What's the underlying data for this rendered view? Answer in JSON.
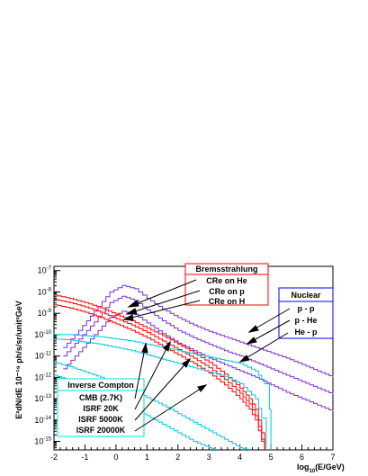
{
  "chart_data": {
    "type": "line",
    "title": "",
    "xlabel": "log10(E/GeV)",
    "xlabel_base": "log",
    "xlabel_sub": "10",
    "xlabel_rest": "(E/GeV)",
    "ylabel": "E²dN/dE 10⁻¹⁹ ph/s/sr/unit²GeV",
    "xlim": [
      -2,
      7
    ],
    "ylim_log10": [
      -15.4,
      -6.8
    ],
    "xticks": [
      "-2",
      "-1",
      "0",
      "1",
      "2",
      "3",
      "4",
      "5",
      "6",
      "7"
    ],
    "yticks": [
      {
        "mant": "10",
        "exp": "-7",
        "value": -7
      },
      {
        "mant": "10",
        "exp": "-8",
        "value": -8
      },
      {
        "mant": "10",
        "exp": "-9",
        "value": -9
      },
      {
        "mant": "10",
        "exp": "-10",
        "value": -10
      },
      {
        "mant": "10",
        "exp": "-11",
        "value": -11
      },
      {
        "mant": "10",
        "exp": "-12",
        "value": -12
      },
      {
        "mant": "10",
        "exp": "-13",
        "value": -13
      },
      {
        "mant": "10",
        "exp": "-14",
        "value": -14
      },
      {
        "mant": "10",
        "exp": "-15",
        "value": -15
      }
    ],
    "legends": [
      {
        "title": "Bremsstrahlung",
        "border": "#ff0000",
        "entries": [
          "CRe on He",
          "CRe on p",
          "CRe on H"
        ]
      },
      {
        "title": "Nuclear",
        "border": "#0000ff",
        "entries": [
          "p - p",
          "p - He",
          "He - p"
        ]
      },
      {
        "title": "Inverse Compton",
        "border": "#00e0e0",
        "entries": [
          "CMB (2.7K)",
          "ISRF 20K",
          "ISRF 5000K",
          "ISRF 20000K"
        ]
      }
    ],
    "series": [
      {
        "group": "Nuclear",
        "color": "#7b2fd6",
        "x": [
          -1.7,
          -1.2,
          -0.7,
          -0.2,
          0.2,
          0.6,
          1,
          1.5,
          2,
          2.5,
          3,
          3.5,
          4,
          4.5,
          5,
          5.5,
          6,
          6.5,
          7
        ],
        "log_y": [
          -10.6,
          -9.8,
          -8.9,
          -8.0,
          -7.7,
          -7.85,
          -8.3,
          -8.8,
          -9.2,
          -9.55,
          -9.85,
          -10.1,
          -10.35,
          -10.6,
          -10.85,
          -11.1,
          -11.4,
          -11.7,
          -12.0
        ]
      },
      {
        "group": "Nuclear",
        "color": "#7b2fd6",
        "x": [
          -1.7,
          -1.2,
          -0.7,
          -0.2,
          0.2,
          0.6,
          1,
          1.5,
          2,
          2.5,
          3,
          3.5,
          4,
          4.5,
          5,
          5.5,
          6,
          6.5,
          7
        ],
        "log_y": [
          -11.0,
          -10.2,
          -9.4,
          -8.5,
          -8.2,
          -8.4,
          -8.85,
          -9.35,
          -9.8,
          -10.15,
          -10.45,
          -10.75,
          -11.0,
          -11.3,
          -11.6,
          -11.9,
          -12.2,
          -12.5,
          -12.8
        ]
      },
      {
        "group": "Nuclear",
        "color": "#7b2fd6",
        "x": [
          -1.7,
          -1.2,
          -0.7,
          -0.2,
          0.2,
          0.6,
          1,
          1.5,
          2,
          2.5,
          3,
          3.5,
          4,
          4.5,
          5,
          5.5,
          6,
          6.5,
          7
        ],
        "log_y": [
          -11.6,
          -10.8,
          -10.0,
          -9.2,
          -8.9,
          -9.05,
          -9.45,
          -9.95,
          -10.4,
          -10.75,
          -11.1,
          -11.4,
          -11.7,
          -12.0,
          -12.35,
          -12.7,
          -13.0,
          -13.3,
          -13.6
        ]
      },
      {
        "group": "Bremsstrahlung",
        "color": "#ff0000",
        "x": [
          -2,
          -1.5,
          -1,
          -0.5,
          0,
          0.5,
          1,
          1.5,
          2,
          2.5,
          3,
          3.5,
          4,
          4.3,
          4.5,
          4.6,
          4.7,
          4.8
        ],
        "log_y": [
          -8.15,
          -8.3,
          -8.5,
          -8.75,
          -9.05,
          -9.35,
          -9.7,
          -10.05,
          -10.45,
          -10.85,
          -11.3,
          -11.85,
          -12.5,
          -13.0,
          -13.5,
          -14.0,
          -14.6,
          -15.4
        ]
      },
      {
        "group": "Bremsstrahlung",
        "color": "#ff0000",
        "x": [
          -2,
          -1.5,
          -1,
          -0.5,
          0,
          0.5,
          1,
          1.5,
          2,
          2.5,
          3,
          3.5,
          4,
          4.3,
          4.5,
          4.6,
          4.7,
          4.8
        ],
        "log_y": [
          -8.35,
          -8.5,
          -8.7,
          -8.95,
          -9.25,
          -9.55,
          -9.9,
          -10.3,
          -10.7,
          -11.1,
          -11.55,
          -12.1,
          -12.75,
          -13.25,
          -13.8,
          -14.3,
          -14.9,
          -15.4
        ]
      },
      {
        "group": "Bremsstrahlung",
        "color": "#ff0000",
        "x": [
          -2,
          -1.5,
          -1,
          -0.5,
          0,
          0.5,
          1,
          1.5,
          2,
          2.5,
          3,
          3.5,
          4,
          4.3,
          4.5,
          4.6,
          4.7,
          4.8
        ],
        "log_y": [
          -8.6,
          -8.75,
          -8.95,
          -9.2,
          -9.5,
          -9.8,
          -10.15,
          -10.55,
          -10.95,
          -11.35,
          -11.8,
          -12.35,
          -13.0,
          -13.5,
          -14.0,
          -14.5,
          -15.0,
          -15.4
        ]
      },
      {
        "group": "Inverse Compton",
        "color": "#00c8e0",
        "x": [
          -2,
          -1.5,
          -1,
          -0.5,
          0,
          0.5,
          1,
          1.5,
          2,
          2.5,
          3,
          3.5,
          4,
          4.5,
          4.8,
          4.95,
          5.0
        ],
        "log_y": [
          -10.0,
          -10.0,
          -10.05,
          -10.1,
          -10.2,
          -10.3,
          -10.45,
          -10.6,
          -10.75,
          -10.9,
          -11.05,
          -11.2,
          -11.35,
          -11.7,
          -12.3,
          -13.5,
          -15.4
        ]
      },
      {
        "group": "Inverse Compton",
        "color": "#00c8e0",
        "x": [
          -2,
          -1.5,
          -1,
          -0.5,
          0,
          0.5,
          1,
          1.5,
          2,
          2.5,
          3,
          3.5,
          4,
          4.5,
          4.7,
          4.85
        ],
        "log_y": [
          -10.2,
          -10.25,
          -10.35,
          -10.45,
          -10.6,
          -10.75,
          -10.95,
          -11.15,
          -11.35,
          -11.55,
          -11.75,
          -11.95,
          -12.3,
          -13.0,
          -13.9,
          -15.4
        ]
      },
      {
        "group": "Inverse Compton",
        "color": "#00c8e0",
        "x": [
          -2,
          -1.5,
          -1,
          -0.5,
          0,
          0.5,
          1,
          1.5,
          2,
          2.5,
          3,
          3.5,
          4,
          4.3
        ],
        "log_y": [
          -11.3,
          -11.5,
          -11.75,
          -12.0,
          -12.3,
          -12.6,
          -12.95,
          -13.3,
          -13.7,
          -14.1,
          -14.5,
          -14.9,
          -15.3,
          -15.4
        ]
      },
      {
        "group": "Inverse Compton",
        "color": "#00c8e0",
        "x": [
          -2,
          -1.5,
          -1,
          -0.5,
          0,
          0.5,
          1,
          1.5,
          2,
          2.5,
          3,
          3.2
        ],
        "log_y": [
          -11.9,
          -12.15,
          -12.45,
          -12.75,
          -13.1,
          -13.45,
          -13.8,
          -14.2,
          -14.6,
          -15.0,
          -15.3,
          -15.4
        ]
      }
    ]
  }
}
